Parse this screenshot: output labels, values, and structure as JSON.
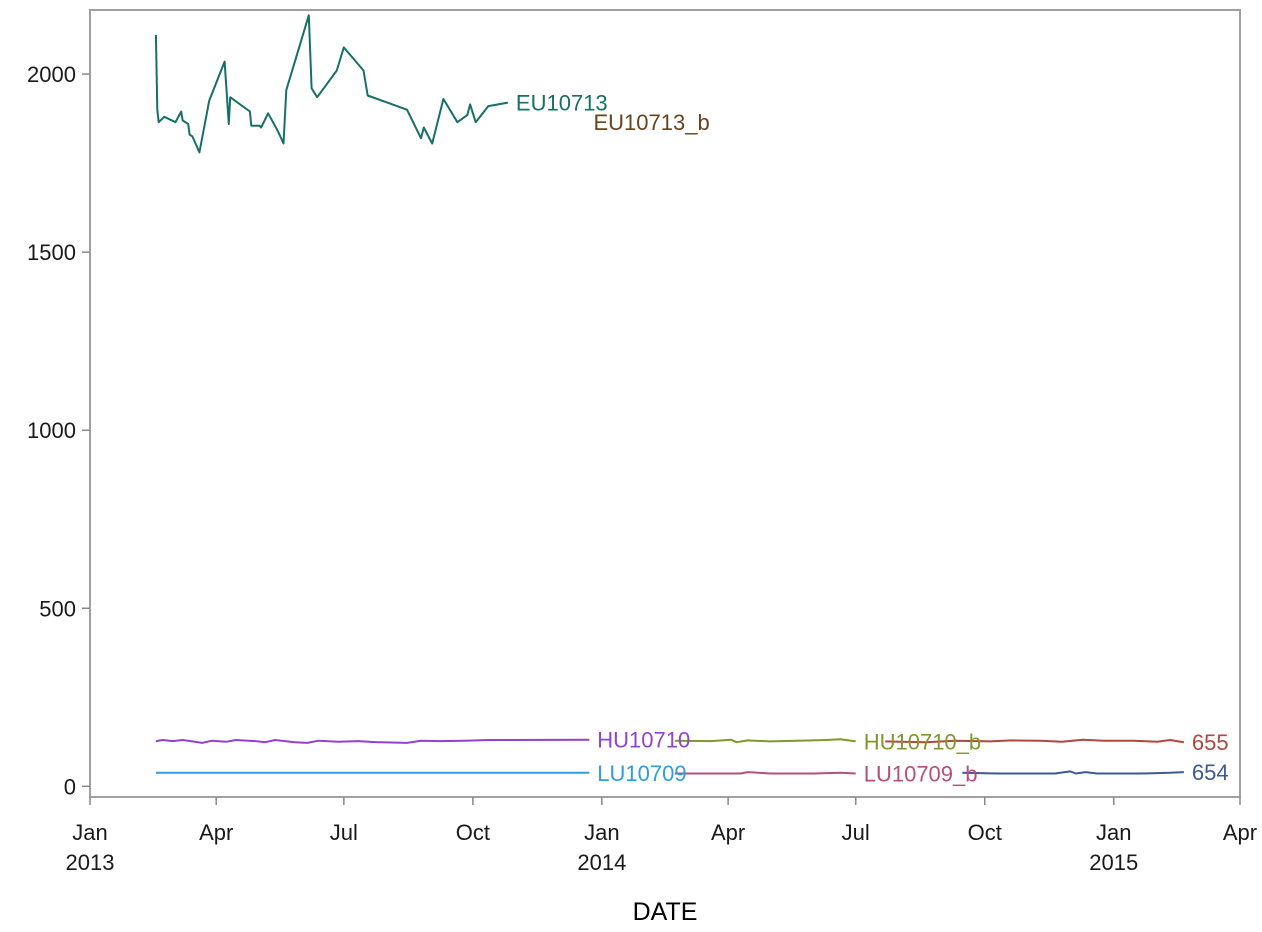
{
  "chart_data": {
    "type": "line",
    "title": "",
    "xlabel": "DATE",
    "ylabel": "",
    "xlim": [
      "2013-01-01",
      "2015-04-01"
    ],
    "ylim": [
      -30,
      2180
    ],
    "grid": false,
    "legend": "none",
    "x_ticks": [
      {
        "date": "2013-01-01",
        "label": "Jan",
        "year": "2013"
      },
      {
        "date": "2013-04-01",
        "label": "Apr",
        "year": ""
      },
      {
        "date": "2013-07-01",
        "label": "Jul",
        "year": ""
      },
      {
        "date": "2013-10-01",
        "label": "Oct",
        "year": ""
      },
      {
        "date": "2014-01-01",
        "label": "Jan",
        "year": "2014"
      },
      {
        "date": "2014-04-01",
        "label": "Apr",
        "year": ""
      },
      {
        "date": "2014-07-01",
        "label": "Jul",
        "year": ""
      },
      {
        "date": "2014-10-01",
        "label": "Oct",
        "year": ""
      },
      {
        "date": "2015-01-01",
        "label": "Jan",
        "year": "2015"
      },
      {
        "date": "2015-04-01",
        "label": "Apr",
        "year": ""
      }
    ],
    "y_ticks": [
      0,
      500,
      1000,
      1500,
      2000
    ],
    "series": [
      {
        "name": "EU10713",
        "color": "#167066",
        "label_pos": "end",
        "points": [
          [
            "2013-02-17",
            2110
          ],
          [
            "2013-02-18",
            1900
          ],
          [
            "2013-02-19",
            1865
          ],
          [
            "2013-02-23",
            1880
          ],
          [
            "2013-03-03",
            1865
          ],
          [
            "2013-03-07",
            1895
          ],
          [
            "2013-03-08",
            1870
          ],
          [
            "2013-03-12",
            1860
          ],
          [
            "2013-03-13",
            1830
          ],
          [
            "2013-03-15",
            1825
          ],
          [
            "2013-03-20",
            1780
          ],
          [
            "2013-03-27",
            1925
          ],
          [
            "2013-04-07",
            2035
          ],
          [
            "2013-04-10",
            1860
          ],
          [
            "2013-04-11",
            1935
          ],
          [
            "2013-04-25",
            1895
          ],
          [
            "2013-04-26",
            1855
          ],
          [
            "2013-05-02",
            1855
          ],
          [
            "2013-05-03",
            1850
          ],
          [
            "2013-05-08",
            1890
          ],
          [
            "2013-05-15",
            1840
          ],
          [
            "2013-05-19",
            1805
          ],
          [
            "2013-05-21",
            1955
          ],
          [
            "2013-06-06",
            2165
          ],
          [
            "2013-06-08",
            1960
          ],
          [
            "2013-06-12",
            1935
          ],
          [
            "2013-06-26",
            2010
          ],
          [
            "2013-07-01",
            2075
          ],
          [
            "2013-07-15",
            2010
          ],
          [
            "2013-07-18",
            1940
          ],
          [
            "2013-08-15",
            1900
          ],
          [
            "2013-08-25",
            1820
          ],
          [
            "2013-08-27",
            1850
          ],
          [
            "2013-09-02",
            1805
          ],
          [
            "2013-09-10",
            1930
          ],
          [
            "2013-09-20",
            1865
          ],
          [
            "2013-09-27",
            1885
          ],
          [
            "2013-09-29",
            1915
          ],
          [
            "2013-10-01",
            1890
          ],
          [
            "2013-10-03",
            1865
          ],
          [
            "2013-10-12",
            1910
          ],
          [
            "2013-10-26",
            1920
          ]
        ]
      },
      {
        "name": "EU10713_b",
        "color": "#66441e",
        "label_pos": "floating",
        "label_at": [
          "2013-12-26",
          1865
        ],
        "points": []
      },
      {
        "name": "HU10710",
        "color": "#9440d0",
        "label_pos": "end",
        "points": [
          [
            "2013-02-17",
            127
          ],
          [
            "2013-02-22",
            130
          ],
          [
            "2013-03-01",
            127
          ],
          [
            "2013-03-08",
            130
          ],
          [
            "2013-03-15",
            126
          ],
          [
            "2013-03-22",
            122
          ],
          [
            "2013-03-29",
            128
          ],
          [
            "2013-04-08",
            125
          ],
          [
            "2013-04-15",
            130
          ],
          [
            "2013-04-29",
            127
          ],
          [
            "2013-05-06",
            124
          ],
          [
            "2013-05-13",
            130
          ],
          [
            "2013-05-27",
            124
          ],
          [
            "2013-06-05",
            122
          ],
          [
            "2013-06-13",
            128
          ],
          [
            "2013-06-27",
            125
          ],
          [
            "2013-07-11",
            127
          ],
          [
            "2013-07-25",
            124
          ],
          [
            "2013-08-15",
            122
          ],
          [
            "2013-08-25",
            128
          ],
          [
            "2013-09-08",
            127
          ],
          [
            "2013-09-25",
            128
          ],
          [
            "2013-10-12",
            130
          ],
          [
            "2013-12-23",
            131
          ]
        ]
      },
      {
        "name": "LU10709",
        "color": "#2e9ce6",
        "label_pos": "end",
        "points": [
          [
            "2013-02-17",
            38
          ],
          [
            "2013-12-23",
            38
          ]
        ]
      },
      {
        "name": "HU10710_b",
        "color": "#7f9a2a",
        "label_pos": "end",
        "points": [
          [
            "2014-02-22",
            128
          ],
          [
            "2014-03-20",
            127
          ],
          [
            "2014-04-03",
            131
          ],
          [
            "2014-04-07",
            124
          ],
          [
            "2014-04-15",
            129
          ],
          [
            "2014-05-01",
            126
          ],
          [
            "2014-05-20",
            128
          ],
          [
            "2014-06-10",
            130
          ],
          [
            "2014-06-20",
            132
          ],
          [
            "2014-07-01",
            126
          ]
        ]
      },
      {
        "name": "LU10709_b",
        "color": "#b84e7c",
        "label_pos": "end",
        "points": [
          [
            "2014-02-22",
            36
          ],
          [
            "2014-04-10",
            36
          ],
          [
            "2014-04-15",
            40
          ],
          [
            "2014-05-01",
            36
          ],
          [
            "2014-06-01",
            36
          ],
          [
            "2014-06-20",
            38
          ],
          [
            "2014-07-01",
            36
          ]
        ]
      },
      {
        "name": "655",
        "color": "#b3463f",
        "label_pos": "end",
        "points": [
          [
            "2014-07-22",
            126
          ],
          [
            "2014-08-20",
            124
          ],
          [
            "2014-09-10",
            128
          ],
          [
            "2014-10-05",
            126
          ],
          [
            "2014-10-20",
            129
          ],
          [
            "2014-11-10",
            128
          ],
          [
            "2014-11-25",
            125
          ],
          [
            "2014-12-10",
            131
          ],
          [
            "2014-12-25",
            128
          ],
          [
            "2015-01-15",
            128
          ],
          [
            "2015-02-01",
            125
          ],
          [
            "2015-02-10",
            130
          ],
          [
            "2015-02-20",
            124
          ]
        ]
      },
      {
        "name": "654",
        "color": "#3c5a96",
        "label_pos": "end",
        "points": [
          [
            "2014-09-15",
            38
          ],
          [
            "2014-10-10",
            36
          ],
          [
            "2014-11-20",
            36
          ],
          [
            "2014-12-01",
            42
          ],
          [
            "2014-12-05",
            36
          ],
          [
            "2014-12-12",
            40
          ],
          [
            "2014-12-20",
            36
          ],
          [
            "2015-01-20",
            36
          ],
          [
            "2015-02-10",
            38
          ],
          [
            "2015-02-20",
            40
          ]
        ]
      }
    ]
  }
}
